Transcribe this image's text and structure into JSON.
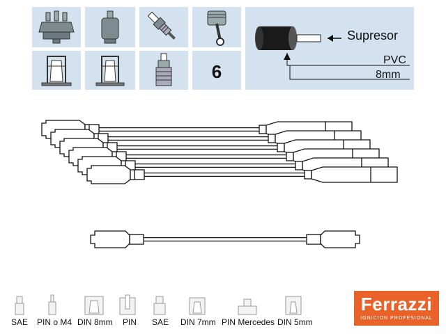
{
  "specs": {
    "cylinder_count": "6",
    "suppressor_label": "Supresor",
    "insulation_label": "PVC",
    "diameter_label": "8mm"
  },
  "icons": {
    "top_row": [
      "distributor-cap-icon",
      "ignition-coil-icon",
      "spark-plug-icon",
      "piston-icon"
    ],
    "bottom_row": [
      "distributor-terminal-icon",
      "coil-terminal-icon",
      "spark-plug-boot-icon"
    ]
  },
  "colors": {
    "tile_background": "#d3e2ee",
    "brand_orange": "#e8622a"
  },
  "legend": [
    {
      "label": "SAE"
    },
    {
      "label": "PIN o M4"
    },
    {
      "label": "DIN 8mm"
    },
    {
      "label": "PIN"
    },
    {
      "label": "SAE"
    },
    {
      "label": "DIN 7mm"
    },
    {
      "label": "PIN Mercedes"
    },
    {
      "label": "DIN 5mm"
    }
  ],
  "logo": {
    "brand": "Ferrazzi",
    "tagline": "IGNICION PROFESIONAL"
  }
}
